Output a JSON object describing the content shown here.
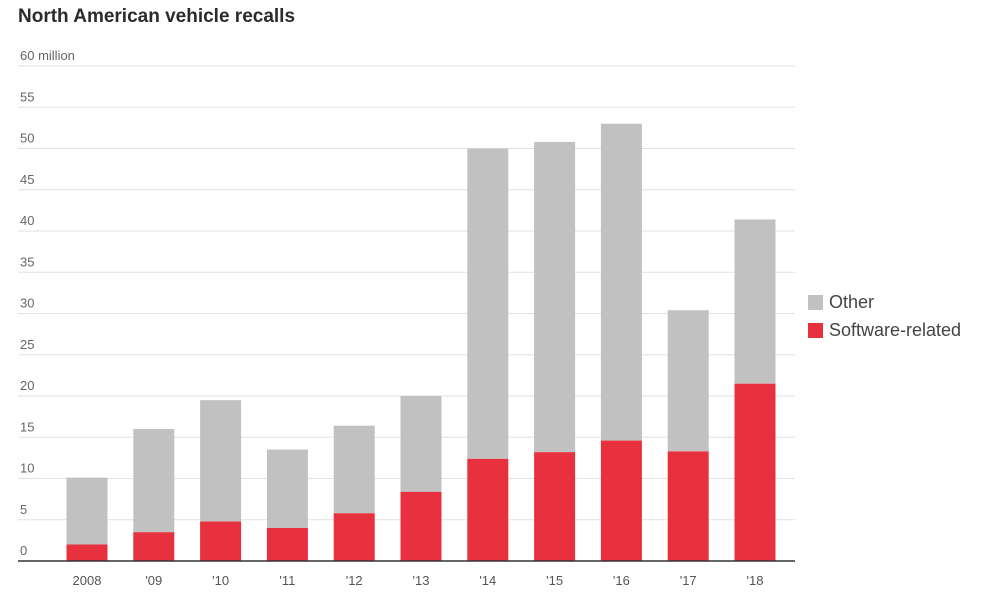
{
  "chart_data": {
    "type": "bar",
    "stacked": true,
    "title": "North American vehicle recalls",
    "y_top_label": "60 million",
    "ylim": [
      0,
      60
    ],
    "yticks": [
      0,
      5,
      10,
      15,
      20,
      25,
      30,
      35,
      40,
      45,
      50,
      55,
      60
    ],
    "categories": [
      "2008",
      "'09",
      "'10",
      "'11",
      "'12",
      "'13",
      "'14",
      "'15",
      "'16",
      "'17",
      "'18"
    ],
    "series": [
      {
        "name": "Software-related",
        "color": "#e8313f",
        "values": [
          2,
          3.5,
          4.8,
          4,
          5.8,
          8.4,
          12.4,
          13.2,
          14.6,
          13.3,
          21.5
        ]
      },
      {
        "name": "Other",
        "color": "#c2c1c2",
        "values": [
          8.1,
          12.5,
          14.7,
          9.5,
          10.6,
          11.6,
          37.6,
          37.6,
          38.4,
          17.1,
          19.9
        ]
      }
    ],
    "legend_position": "right",
    "grid": true
  },
  "legend": [
    {
      "label": "Other",
      "color": "#c2c1c2"
    },
    {
      "label": "Software-related",
      "color": "#e8313f"
    }
  ]
}
